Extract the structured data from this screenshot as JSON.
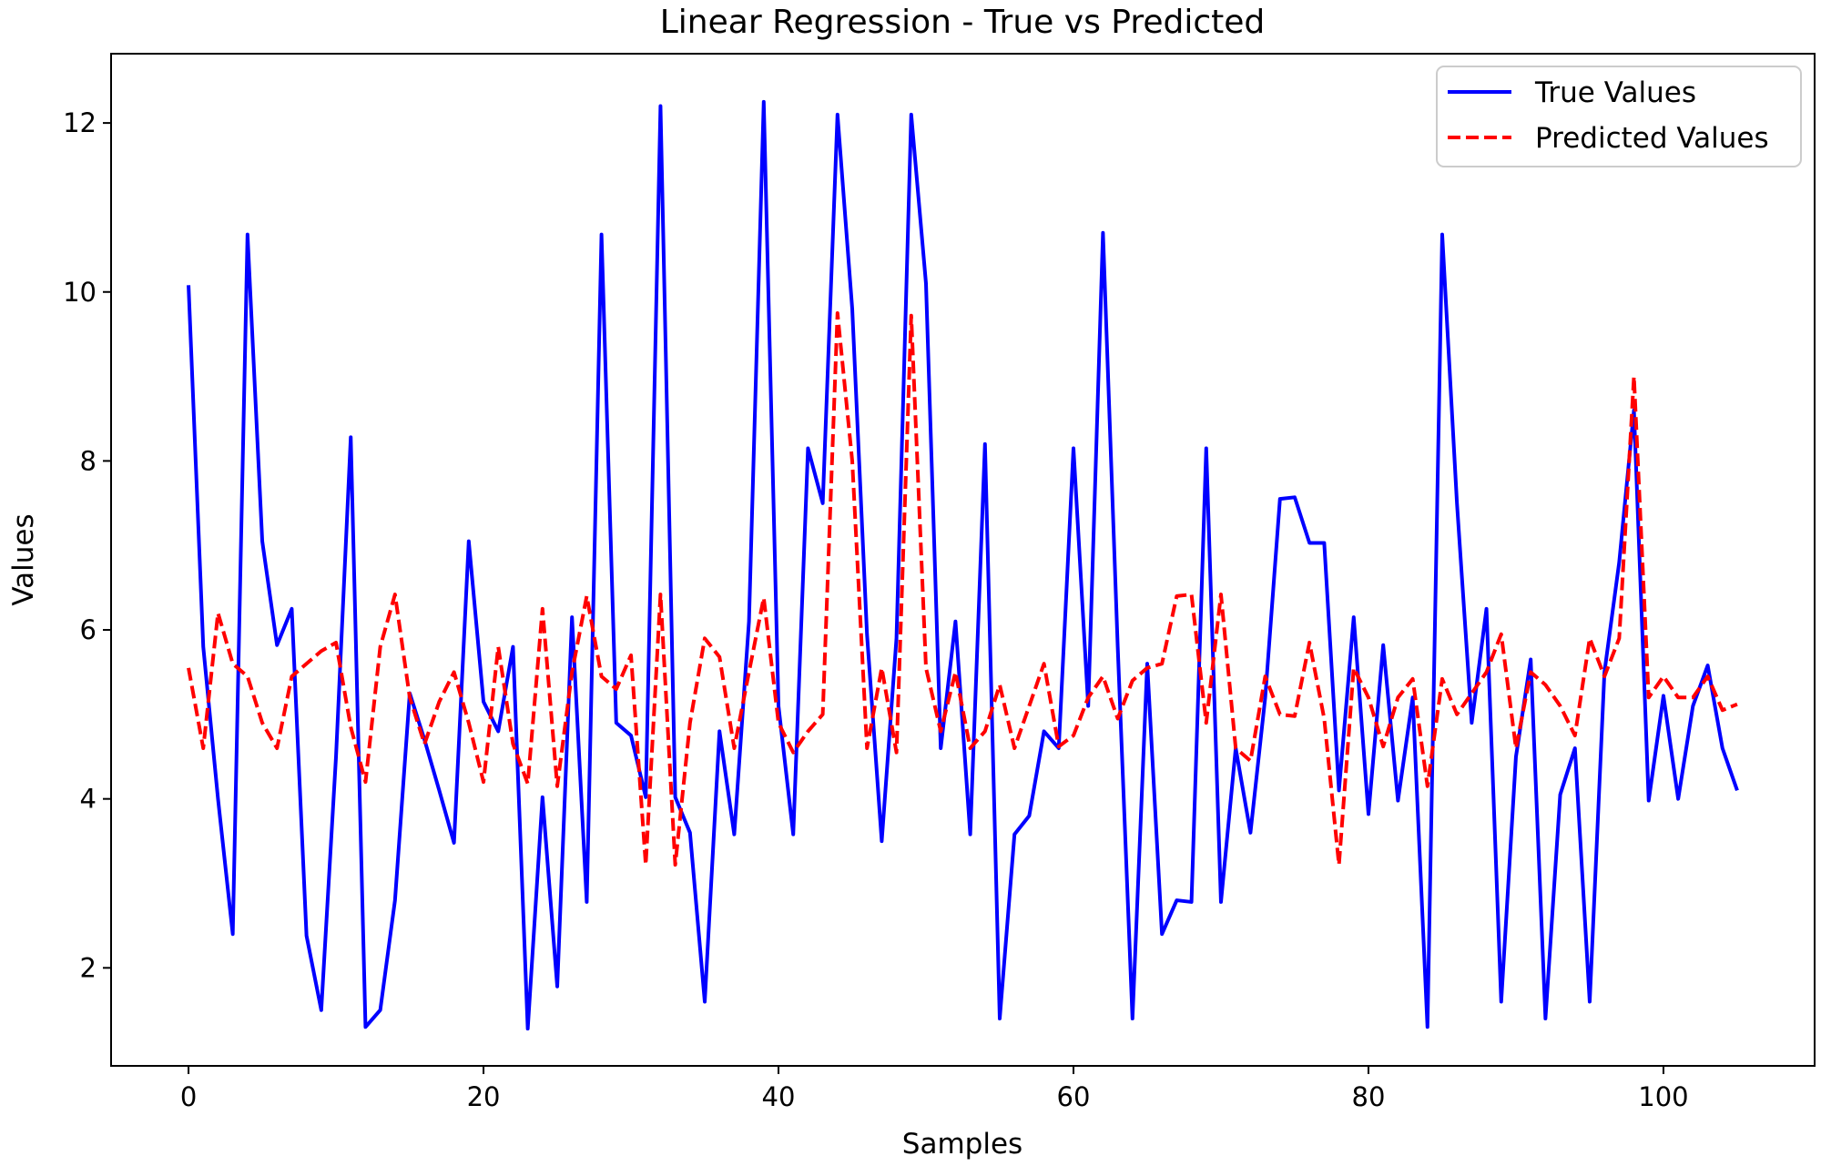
{
  "chart_data": {
    "type": "line",
    "title": "Linear Regression - True vs Predicted",
    "xlabel": "Samples",
    "ylabel": "Values",
    "xlim": [
      -5.25,
      110.25
    ],
    "ylim": [
      0.84,
      12.82
    ],
    "xticks": [
      0,
      20,
      40,
      60,
      80,
      100
    ],
    "yticks": [
      2,
      4,
      6,
      8,
      10,
      12
    ],
    "grid": false,
    "legend_position": "top-right",
    "series": [
      {
        "name": "True Values",
        "color": "#0000ff",
        "style": "solid",
        "values": [
          10.08,
          5.8,
          4.0,
          2.4,
          10.68,
          7.05,
          5.82,
          6.25,
          2.38,
          1.5,
          4.5,
          8.28,
          1.3,
          1.5,
          2.8,
          5.25,
          4.7,
          4.1,
          3.48,
          7.05,
          5.15,
          4.8,
          5.8,
          1.28,
          4.02,
          1.78,
          6.15,
          2.78,
          10.68,
          4.9,
          4.75,
          4.02,
          12.2,
          4.02,
          3.6,
          1.6,
          4.8,
          3.58,
          6.1,
          12.25,
          5.1,
          3.58,
          8.15,
          7.5,
          12.1,
          9.8,
          5.95,
          3.5,
          5.9,
          12.1,
          10.1,
          4.6,
          6.1,
          3.58,
          8.2,
          1.4,
          3.58,
          3.8,
          4.8,
          4.6,
          8.15,
          5.1,
          10.7,
          5.8,
          1.4,
          5.6,
          2.4,
          2.8,
          2.78,
          8.15,
          2.78,
          4.6,
          3.6,
          5.2,
          7.55,
          7.57,
          7.03,
          7.03,
          4.1,
          6.15,
          3.82,
          5.82,
          3.98,
          5.2,
          1.3,
          10.68,
          7.5,
          4.9,
          6.25,
          1.6,
          4.5,
          5.65,
          1.4,
          4.05,
          4.6,
          1.6,
          5.5,
          6.8,
          8.6,
          3.98,
          5.22,
          4.0,
          5.1,
          5.58,
          4.6,
          4.1
        ]
      },
      {
        "name": "Predicted Values",
        "color": "#ff0000",
        "style": "dashed",
        "values": [
          5.55,
          4.6,
          6.2,
          5.6,
          5.45,
          4.9,
          4.6,
          5.45,
          5.6,
          5.75,
          5.85,
          4.85,
          4.2,
          5.8,
          6.42,
          5.2,
          4.65,
          5.15,
          5.5,
          4.9,
          4.2,
          5.8,
          4.65,
          4.18,
          6.25,
          4.15,
          5.5,
          6.4,
          5.45,
          5.3,
          5.7,
          3.22,
          6.42,
          3.22,
          4.9,
          5.9,
          5.68,
          4.6,
          5.5,
          6.38,
          4.9,
          4.55,
          4.8,
          5.0,
          9.75,
          8.0,
          4.6,
          5.55,
          4.55,
          9.72,
          5.55,
          4.8,
          5.5,
          4.6,
          4.8,
          5.35,
          4.6,
          5.1,
          5.6,
          4.62,
          4.75,
          5.2,
          5.45,
          4.95,
          5.4,
          5.55,
          5.6,
          6.4,
          6.42,
          4.9,
          6.42,
          4.6,
          4.45,
          5.45,
          5.0,
          4.98,
          5.85,
          4.95,
          3.22,
          5.55,
          5.2,
          4.62,
          5.2,
          5.42,
          4.15,
          5.42,
          5.0,
          5.25,
          5.5,
          5.95,
          4.6,
          5.5,
          5.35,
          5.1,
          4.75,
          5.9,
          5.45,
          5.9,
          9.0,
          5.2,
          5.45,
          5.2,
          5.2,
          5.45,
          5.05,
          5.12
        ]
      }
    ]
  }
}
